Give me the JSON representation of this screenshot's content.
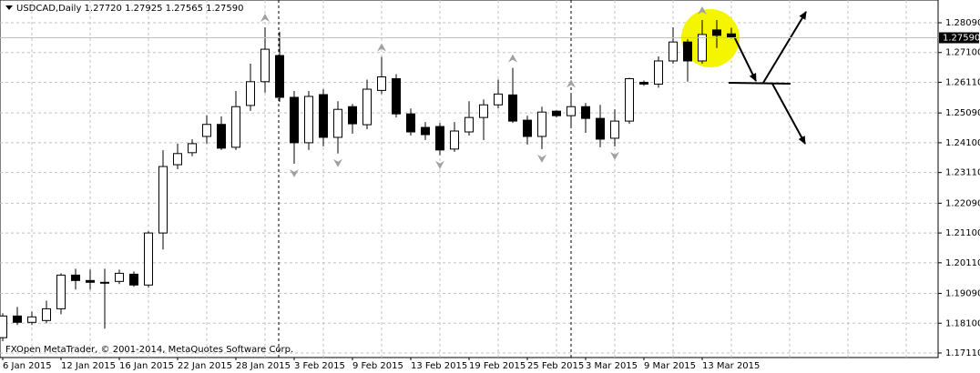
{
  "chart_data": {
    "type": "candlestick",
    "title": "USDCAD,Daily  1.27720 1.27925 1.27565 1.27590",
    "footer": "FXOpen MetaTrader, © 2001-2014, MetaQuotes Software Corp.",
    "categories": [
      "6 Jan 2015",
      null,
      null,
      null,
      "12 Jan 2015",
      null,
      null,
      null,
      "16 Jan 2015",
      null,
      null,
      null,
      "22 Jan 2015",
      null,
      null,
      null,
      "28 Jan 2015",
      null,
      null,
      null,
      "3 Feb 2015",
      null,
      null,
      null,
      "9 Feb 2015",
      null,
      null,
      null,
      "13 Feb 2015",
      null,
      null,
      null,
      "19 Feb 2015",
      null,
      null,
      null,
      "25 Feb 2015",
      null,
      null,
      null,
      "3 Mar 2015",
      null,
      null,
      null,
      "9 Mar 2015",
      null,
      null,
      null,
      "13 Mar 2015",
      null,
      null
    ],
    "open": [
      1.1762,
      1.1834,
      1.1813,
      1.1819,
      1.1858,
      1.197,
      1.1952,
      1.1946,
      1.1949,
      1.1973,
      1.1937,
      1.211,
      1.2337,
      1.2377,
      1.2431,
      1.2471,
      1.2395,
      1.2534,
      1.2613,
      1.27,
      1.2561,
      1.241,
      1.257,
      1.2428,
      1.253,
      1.247,
      1.2584,
      1.2623,
      1.2506,
      1.2461,
      1.2464,
      1.2389,
      1.2446,
      1.2494,
      1.2536,
      1.2569,
      1.2485,
      1.2431,
      1.2515,
      1.25,
      1.253,
      1.2491,
      1.2425,
      1.2482,
      1.2611,
      1.2605,
      1.2682,
      1.2745,
      1.2682,
      1.2785,
      1.2772
    ],
    "high": [
      1.1843,
      1.1864,
      1.1849,
      1.1885,
      1.1976,
      1.1991,
      1.1988,
      1.1991,
      1.1988,
      1.1982,
      1.2116,
      1.2385,
      1.2407,
      1.2422,
      1.2501,
      1.2498,
      1.2582,
      1.2673,
      1.2794,
      1.2779,
      1.2582,
      1.2582,
      1.2588,
      1.2548,
      1.2539,
      1.262,
      1.2695,
      1.2638,
      1.2524,
      1.2479,
      1.2476,
      1.2479,
      1.2548,
      1.2554,
      1.262,
      1.2659,
      1.25,
      1.253,
      1.2518,
      1.2575,
      1.2542,
      1.2536,
      1.2521,
      1.2626,
      1.2617,
      1.2697,
      1.2794,
      1.2754,
      1.2818,
      1.2818,
      1.27925
    ],
    "low": [
      1.175,
      1.1804,
      1.1804,
      1.181,
      1.184,
      1.1922,
      1.1922,
      1.1792,
      1.194,
      1.1931,
      1.1928,
      1.2055,
      1.2322,
      1.2365,
      1.2407,
      1.2386,
      1.2386,
      1.2516,
      1.2577,
      1.2546,
      1.234,
      1.2386,
      1.2398,
      1.2374,
      1.244,
      1.2455,
      1.2572,
      1.2494,
      1.2434,
      1.2419,
      1.2368,
      1.238,
      1.2434,
      1.2419,
      1.2524,
      1.2476,
      1.2404,
      1.2389,
      1.2494,
      1.2464,
      1.2443,
      1.2395,
      1.2398,
      1.2473,
      1.2599,
      1.2593,
      1.2673,
      1.2613,
      1.2673,
      1.2725,
      1.27565
    ],
    "close": [
      1.1834,
      1.1813,
      1.1831,
      1.1858,
      1.197,
      1.1952,
      1.1946,
      1.1944,
      1.1976,
      1.1937,
      1.211,
      1.2331,
      1.2374,
      1.2407,
      1.2471,
      1.2392,
      1.253,
      1.2613,
      1.2721,
      1.2561,
      1.241,
      1.2564,
      1.2428,
      1.2521,
      1.2473,
      1.2588,
      1.2629,
      1.2506,
      1.2446,
      1.2437,
      1.2386,
      1.2449,
      1.2494,
      1.2536,
      1.2572,
      1.2482,
      1.2431,
      1.2512,
      1.25,
      1.253,
      1.2491,
      1.2422,
      1.2482,
      1.2623,
      1.2605,
      1.2682,
      1.2745,
      1.2682,
      1.277,
      1.2767,
      1.2759
    ],
    "fractals_up": [
      18,
      26,
      35,
      39,
      48
    ],
    "fractals_down": [
      20,
      23,
      30,
      37,
      42
    ],
    "last_price": {
      "value": 1.2759,
      "label": "1.27590"
    },
    "ylim": [
      1.16959,
      1.28846
    ],
    "yticks": [
      {
        "value": 1.2809,
        "label": "1.28090"
      },
      {
        "value": 1.271,
        "label": "1.27100"
      },
      {
        "value": 1.2611,
        "label": "1.26110"
      },
      {
        "value": 1.2509,
        "label": "1.25090"
      },
      {
        "value": 1.241,
        "label": "1.24100"
      },
      {
        "value": 1.2311,
        "label": "1.23110"
      },
      {
        "value": 1.2209,
        "label": "1.22090"
      },
      {
        "value": 1.211,
        "label": "1.21100"
      },
      {
        "value": 1.2011,
        "label": "1.20110"
      },
      {
        "value": 1.1909,
        "label": "1.19090"
      },
      {
        "value": 1.181,
        "label": "1.18100"
      },
      {
        "value": 1.1711,
        "label": "1.17110"
      }
    ],
    "grid": true
  }
}
